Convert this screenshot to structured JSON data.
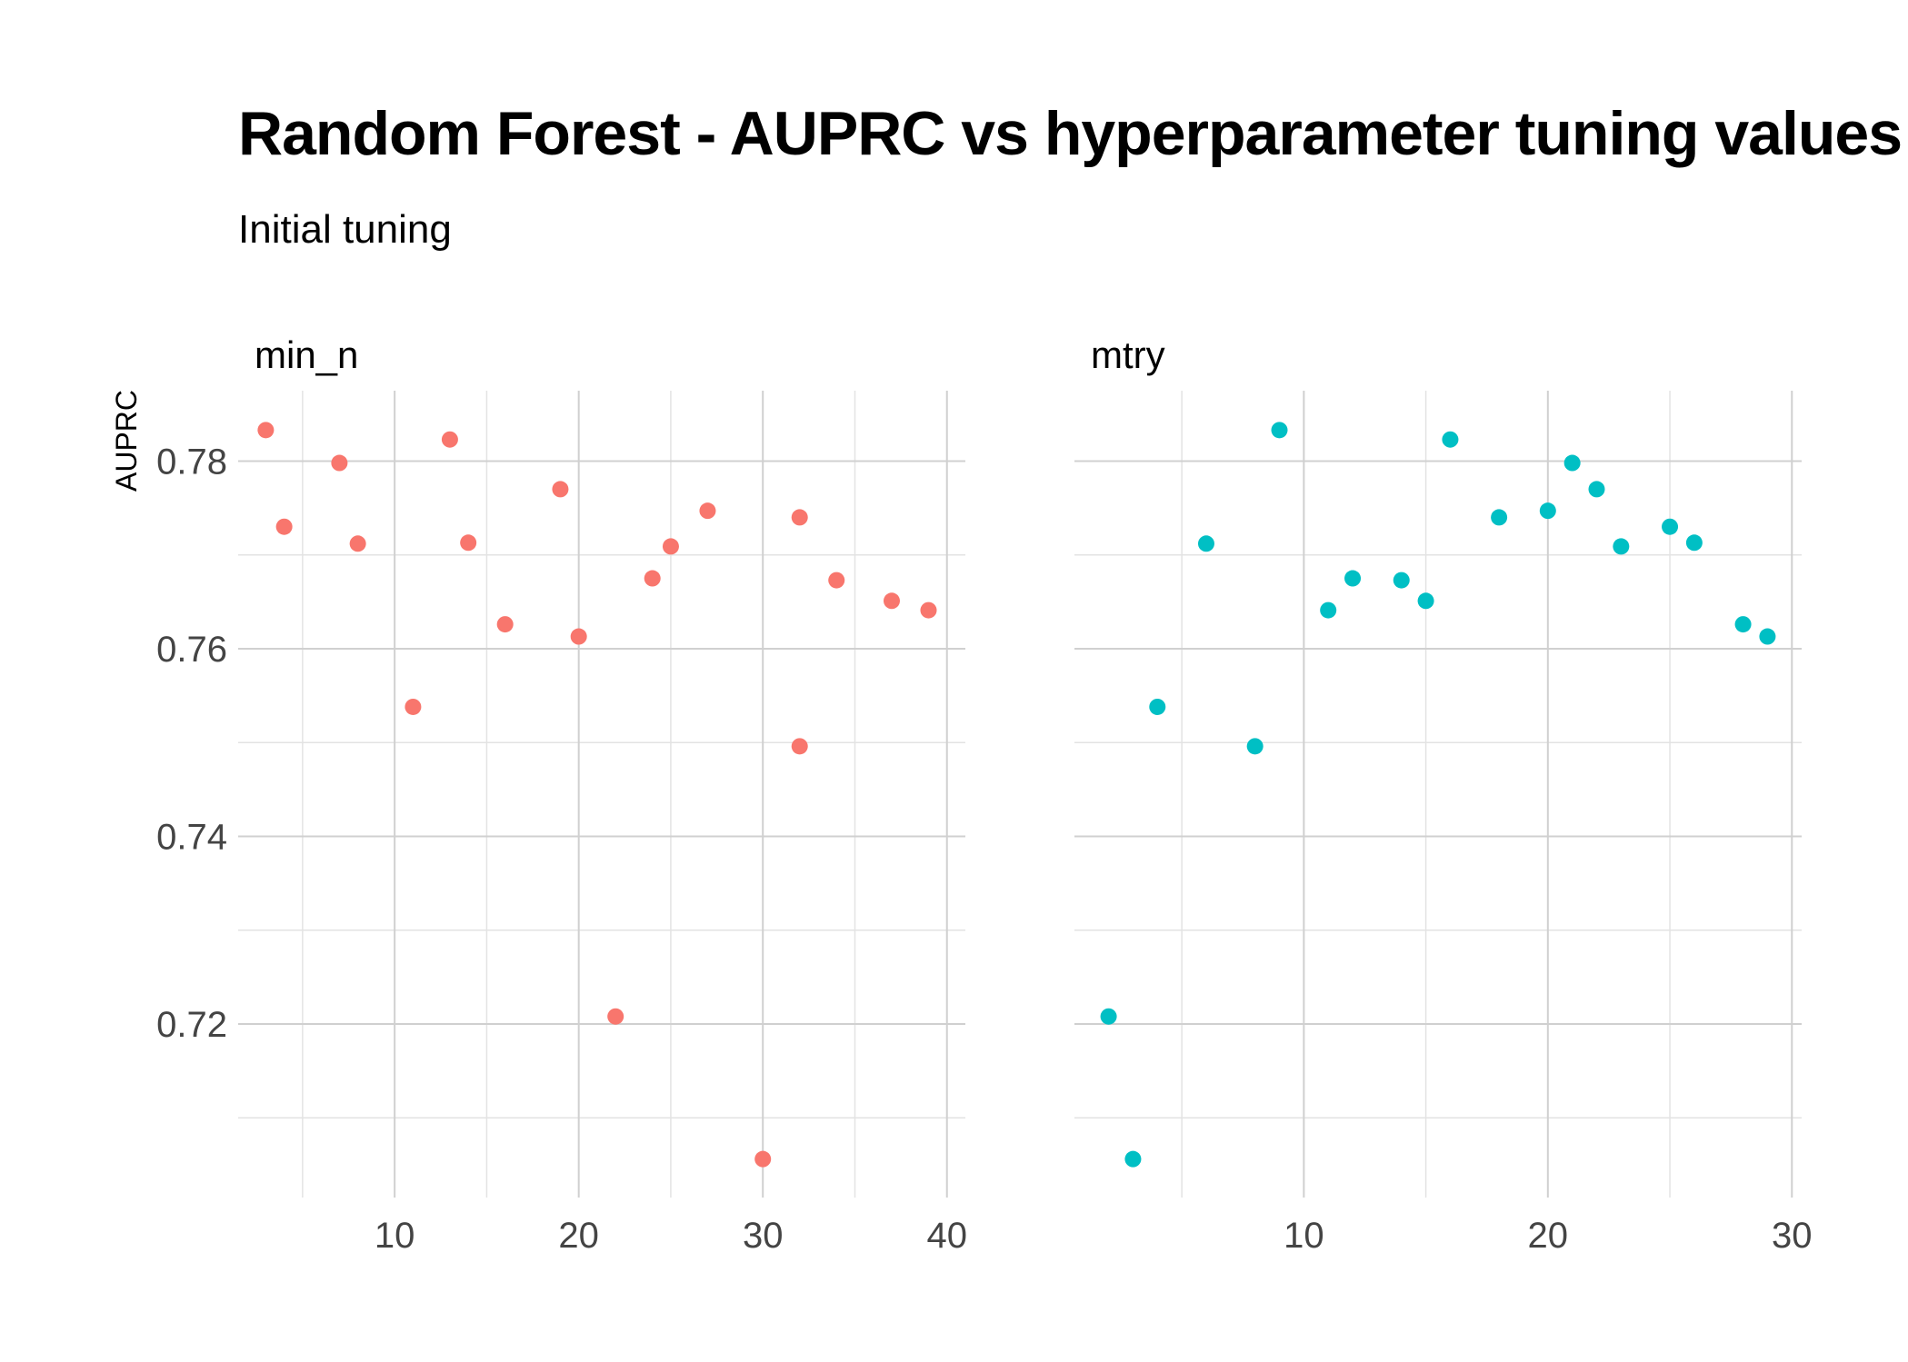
{
  "chart_data": {
    "type": "scatter",
    "title": "Random Forest - AUPRC vs hyperparameter tuning values",
    "subtitle": "Initial tuning",
    "ylabel": "AUPRC",
    "ylim": [
      0.7015,
      0.7875
    ],
    "y_ticks": [
      0.72,
      0.74,
      0.76,
      0.78
    ],
    "y_tick_labels": [
      "0.72",
      "0.74",
      "0.76",
      "0.78"
    ],
    "grid": true,
    "legend": "none",
    "panels": [
      {
        "name": "min_n",
        "color": "#F8766D",
        "xlim": [
          1.5,
          41
        ],
        "x_ticks": [
          10,
          20,
          30,
          40
        ],
        "x_tick_labels": [
          "10",
          "20",
          "30",
          "40"
        ],
        "points": [
          {
            "x": 3,
            "y": 0.7833
          },
          {
            "x": 4,
            "y": 0.773
          },
          {
            "x": 7,
            "y": 0.7798
          },
          {
            "x": 8,
            "y": 0.7712
          },
          {
            "x": 11,
            "y": 0.7538
          },
          {
            "x": 13,
            "y": 0.7823
          },
          {
            "x": 14,
            "y": 0.7713
          },
          {
            "x": 16,
            "y": 0.7626
          },
          {
            "x": 19,
            "y": 0.777
          },
          {
            "x": 20,
            "y": 0.7613
          },
          {
            "x": 22,
            "y": 0.7208
          },
          {
            "x": 24,
            "y": 0.7675
          },
          {
            "x": 25,
            "y": 0.7709
          },
          {
            "x": 27,
            "y": 0.7747
          },
          {
            "x": 30,
            "y": 0.7056
          },
          {
            "x": 32,
            "y": 0.774
          },
          {
            "x": 32,
            "y": 0.7496
          },
          {
            "x": 34,
            "y": 0.7673
          },
          {
            "x": 37,
            "y": 0.7651
          },
          {
            "x": 39,
            "y": 0.7641
          }
        ]
      },
      {
        "name": "mtry",
        "color": "#00BFC4",
        "xlim": [
          0.6,
          30.4
        ],
        "x_ticks": [
          10,
          20,
          30
        ],
        "x_tick_labels": [
          "10",
          "20",
          "30"
        ],
        "points": [
          {
            "x": 2,
            "y": 0.7208
          },
          {
            "x": 3,
            "y": 0.7056
          },
          {
            "x": 4,
            "y": 0.7538
          },
          {
            "x": 6,
            "y": 0.7712
          },
          {
            "x": 8,
            "y": 0.7496
          },
          {
            "x": 9,
            "y": 0.7833
          },
          {
            "x": 11,
            "y": 0.7641
          },
          {
            "x": 12,
            "y": 0.7675
          },
          {
            "x": 14,
            "y": 0.7673
          },
          {
            "x": 15,
            "y": 0.7651
          },
          {
            "x": 16,
            "y": 0.7823
          },
          {
            "x": 18,
            "y": 0.774
          },
          {
            "x": 20,
            "y": 0.7747
          },
          {
            "x": 21,
            "y": 0.7798
          },
          {
            "x": 22,
            "y": 0.777
          },
          {
            "x": 23,
            "y": 0.7709
          },
          {
            "x": 25,
            "y": 0.773
          },
          {
            "x": 26,
            "y": 0.7713
          },
          {
            "x": 28,
            "y": 0.7626
          },
          {
            "x": 29,
            "y": 0.7613
          }
        ]
      }
    ]
  }
}
